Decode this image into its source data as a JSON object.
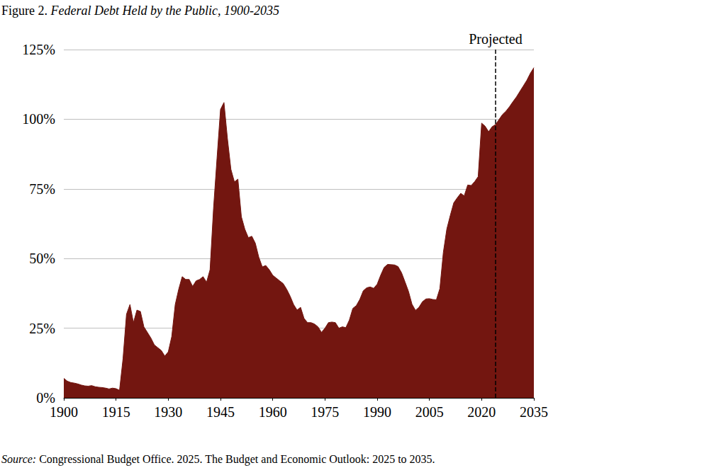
{
  "chart_data": {
    "type": "area",
    "title": "Figure 2. Federal Debt Held by the Public, 1900-2035",
    "source": "Source: Congressional Budget Office. 2025. The Budget and Economic Outlook: 2025 to 2035.",
    "annotations": [
      {
        "text": "Projected",
        "x": 2024
      }
    ],
    "color": "#731610",
    "grid": true,
    "xlim": [
      1900,
      2035
    ],
    "xticks": [
      1900,
      1915,
      1930,
      1945,
      1960,
      1975,
      1990,
      2005,
      2020,
      2035
    ],
    "ylim": [
      0,
      125
    ],
    "yticks": [
      {
        "value": 0,
        "label": "0%"
      },
      {
        "value": 25,
        "label": "25%"
      },
      {
        "value": 50,
        "label": "50%"
      },
      {
        "value": 75,
        "label": "75%"
      },
      {
        "value": 100,
        "label": "100%"
      },
      {
        "value": 125,
        "label": "125%"
      }
    ],
    "x": [
      1900,
      1901,
      1902,
      1903,
      1904,
      1905,
      1906,
      1907,
      1908,
      1909,
      1910,
      1911,
      1912,
      1913,
      1914,
      1915,
      1916,
      1917,
      1918,
      1919,
      1920,
      1921,
      1922,
      1923,
      1924,
      1925,
      1926,
      1927,
      1928,
      1929,
      1930,
      1931,
      1932,
      1933,
      1934,
      1935,
      1936,
      1937,
      1938,
      1939,
      1940,
      1941,
      1942,
      1943,
      1944,
      1945,
      1946,
      1947,
      1948,
      1949,
      1950,
      1951,
      1952,
      1953,
      1954,
      1955,
      1956,
      1957,
      1958,
      1959,
      1960,
      1961,
      1962,
      1963,
      1964,
      1965,
      1966,
      1967,
      1968,
      1969,
      1970,
      1971,
      1972,
      1973,
      1974,
      1975,
      1976,
      1977,
      1978,
      1979,
      1980,
      1981,
      1982,
      1983,
      1984,
      1985,
      1986,
      1987,
      1988,
      1989,
      1990,
      1991,
      1992,
      1993,
      1994,
      1995,
      1996,
      1997,
      1998,
      1999,
      2000,
      2001,
      2002,
      2003,
      2004,
      2005,
      2006,
      2007,
      2008,
      2009,
      2010,
      2011,
      2012,
      2013,
      2014,
      2015,
      2016,
      2017,
      2018,
      2019,
      2020,
      2021,
      2022,
      2023,
      2024,
      2025,
      2026,
      2027,
      2028,
      2029,
      2030,
      2031,
      2032,
      2033,
      2034,
      2035
    ],
    "values": [
      7,
      6,
      5.5,
      5.3,
      5,
      4.6,
      4.3,
      4.2,
      4.4,
      4,
      3.8,
      3.7,
      3.5,
      3.2,
      3.5,
      3.3,
      2.7,
      14,
      30,
      33.5,
      27,
      31.5,
      31,
      25.5,
      23.5,
      21.5,
      19,
      18,
      17,
      15,
      16.5,
      22,
      33.5,
      39,
      43.5,
      42.5,
      42.5,
      40,
      42,
      42.5,
      43.5,
      41.5,
      46,
      68,
      86,
      103.5,
      106,
      93,
      82,
      77.5,
      78.5,
      65,
      60.5,
      57.5,
      58,
      55.5,
      50.5,
      47,
      47.5,
      46,
      44,
      43,
      42,
      41,
      39,
      36.5,
      33.5,
      31.5,
      32.5,
      28.5,
      27,
      27,
      26.5,
      25.5,
      23.5,
      25,
      27,
      27.2,
      27,
      25,
      25.5,
      25.2,
      27.9,
      32.1,
      33.1,
      35.3,
      38.4,
      39.5,
      39.8,
      39.3,
      40.8,
      44,
      46.8,
      47.9,
      47.8,
      47.7,
      47.1,
      44.9,
      41.6,
      38.2,
      33.6,
      31.4,
      32.5,
      34.5,
      35.5,
      35.6,
      35.3,
      35.2,
      39.2,
      52.2,
      60.6,
      65.5,
      70,
      71.8,
      73.4,
      72.5,
      76.4,
      76.2,
      77.6,
      79.4,
      98.6,
      97.5,
      95.5,
      97.3,
      98.1,
      99.9,
      101.7,
      102.9,
      104.5,
      106.3,
      108,
      110,
      112,
      114,
      116.5,
      118.5
    ]
  }
}
